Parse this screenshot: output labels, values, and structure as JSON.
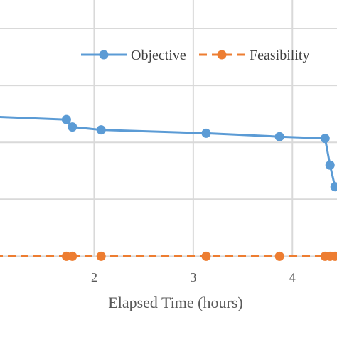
{
  "chart_data": {
    "type": "line",
    "title": "",
    "xlabel": "Elapsed Time (hours)",
    "ylabel": "",
    "xlim": [
      1.05,
      4.45
    ],
    "ylim": [
      -0.02,
      4.5
    ],
    "x_ticks": [
      2,
      3,
      4
    ],
    "x_tick_labels": [
      "2",
      "3",
      "4"
    ],
    "y_gridlines": [
      0,
      1,
      2,
      3,
      4
    ],
    "x_gridlines": [
      2,
      3,
      4
    ],
    "grid": true,
    "legend_position": "top-right",
    "series": [
      {
        "name": "Objective",
        "color": "#5B9BD5",
        "line_style": "solid",
        "marker": "circle",
        "points": [
          [
            1.0,
            2.45
          ],
          [
            1.72,
            2.4
          ],
          [
            1.78,
            2.27
          ],
          [
            2.07,
            2.22
          ],
          [
            3.13,
            2.16
          ],
          [
            3.87,
            2.1
          ],
          [
            4.33,
            2.07
          ],
          [
            4.38,
            1.6
          ],
          [
            4.43,
            1.22
          ]
        ]
      },
      {
        "name": "Feasibility",
        "color": "#ED7D31",
        "line_style": "dashed",
        "marker": "circle",
        "points": [
          [
            1.0,
            0
          ],
          [
            1.72,
            0
          ],
          [
            1.78,
            0
          ],
          [
            2.07,
            0
          ],
          [
            3.13,
            0
          ],
          [
            3.87,
            0
          ],
          [
            4.33,
            0
          ],
          [
            4.38,
            0
          ],
          [
            4.43,
            0
          ]
        ]
      }
    ]
  }
}
